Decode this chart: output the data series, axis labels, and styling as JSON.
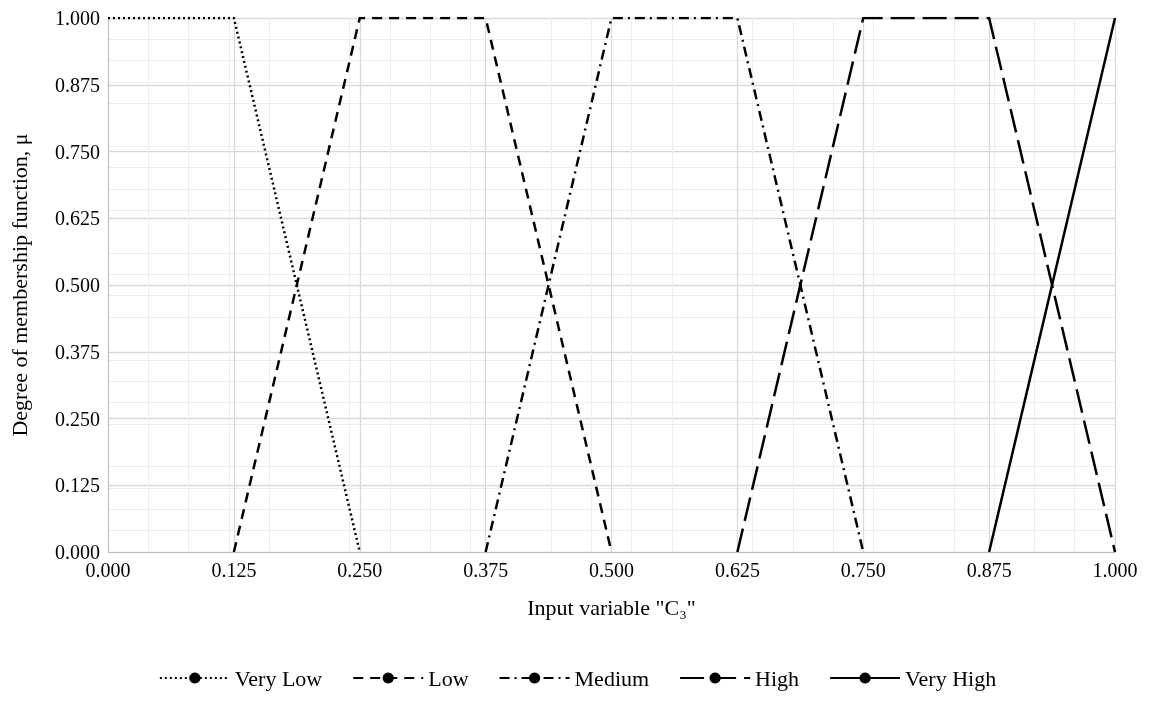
{
  "chart_data": {
    "type": "line",
    "xlabel": "Input variable \"C₃\"",
    "ylabel": "Degree of membership function, μ",
    "xlim": [
      0,
      1
    ],
    "ylim": [
      0,
      1
    ],
    "xticks": [
      {
        "value": 0,
        "label": "0.000"
      },
      0.125,
      {
        "value": 0.25,
        "label": "0.250"
      },
      0.375,
      {
        "value": 0.5,
        "label": "0.500"
      },
      0.625,
      {
        "value": 0.75,
        "label": "0.750"
      },
      0.875,
      {
        "value": 1,
        "label": "1.000"
      }
    ],
    "yticks": [
      {
        "value": 0,
        "label": "0.000"
      },
      0.125,
      {
        "value": 0.25,
        "label": "0.250"
      },
      0.375,
      {
        "value": 0.5,
        "label": "0.500"
      },
      0.625,
      {
        "value": 0.75,
        "label": "0.750"
      },
      0.875,
      {
        "value": 1,
        "label": "1.000"
      }
    ],
    "grid": true,
    "legend": "bottom",
    "marker": "none",
    "series": [
      {
        "name": "Very Low",
        "color": "#000000",
        "line_style": "dotted",
        "x": [
          0,
          0.125,
          0.25
        ],
        "values": [
          1,
          1,
          0
        ]
      },
      {
        "name": "Low",
        "color": "#000000",
        "line_style": "dashed",
        "x": [
          0.125,
          0.25,
          0.375,
          0.5
        ],
        "values": [
          0,
          1,
          1,
          0
        ]
      },
      {
        "name": "Medium",
        "color": "#000000",
        "line_style": "dashdot",
        "x": [
          0.375,
          0.5,
          0.625,
          0.75
        ],
        "values": [
          0,
          1,
          1,
          0
        ]
      },
      {
        "name": "High",
        "color": "#000000",
        "line_style": "longdash",
        "x": [
          0.625,
          0.75,
          0.875,
          1
        ],
        "values": [
          0,
          1,
          1,
          0
        ]
      },
      {
        "name": "Very High",
        "color": "#000000",
        "line_style": "solid",
        "x": [
          0.875,
          1
        ],
        "values": [
          0,
          1
        ]
      }
    ]
  }
}
